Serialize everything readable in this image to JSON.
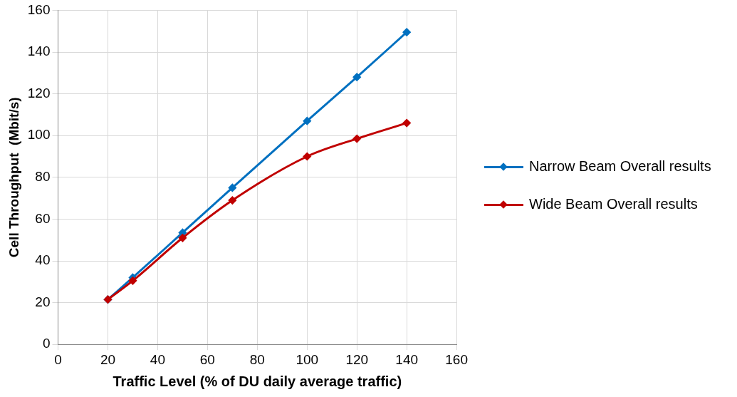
{
  "chart_data": {
    "type": "line",
    "xlabel": "Traffic Level (% of DU daily average traffic)",
    "ylabel": "Cell Throughput  (Mbit/s)",
    "x": [
      20,
      30,
      50,
      70,
      100,
      120,
      140
    ],
    "series": [
      {
        "name": "Narrow Beam Overall results",
        "color": "#0070c0",
        "values": [
          21.5,
          32,
          53.5,
          75,
          107,
          128,
          149.5
        ]
      },
      {
        "name": "Wide Beam Overall results",
        "color": "#c00000",
        "values": [
          21.5,
          30.5,
          51,
          69,
          90,
          98.5,
          106
        ]
      }
    ],
    "xlim": [
      0,
      160
    ],
    "xticks": [
      0,
      20,
      40,
      60,
      80,
      100,
      120,
      140,
      160
    ],
    "ylim": [
      0,
      160
    ],
    "yticks": [
      0,
      20,
      40,
      60,
      80,
      100,
      120,
      140,
      160
    ],
    "grid": true,
    "legend": "right",
    "marker": "diamond",
    "line_style": "solid"
  }
}
